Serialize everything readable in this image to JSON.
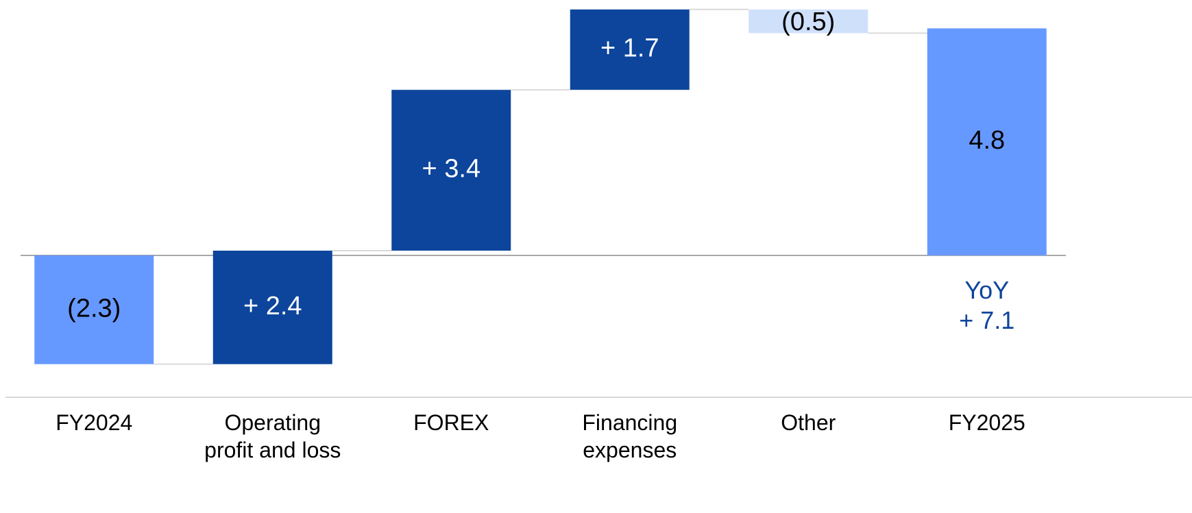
{
  "chart_data": {
    "type": "waterfall",
    "categories": [
      "FY2024",
      "Operating\nprofit and loss",
      "FOREX",
      "Financing\nexpenses",
      "Other",
      "FY2025"
    ],
    "values": [
      -2.3,
      2.4,
      3.4,
      1.7,
      -0.5,
      4.8
    ],
    "value_labels": [
      "(2.3)",
      "+ 2.4",
      "+ 3.4",
      "+ 1.7",
      "(0.5)",
      "4.8"
    ],
    "measure": [
      "absolute",
      "relative",
      "relative",
      "relative",
      "relative",
      "absolute"
    ],
    "colors": [
      "#6699ff",
      "#0d459c",
      "#0d459c",
      "#0d459c",
      "#cfe0fb",
      "#6699ff"
    ],
    "label_colors": [
      "#000000",
      "#ffffff",
      "#ffffff",
      "#ffffff",
      "#000000",
      "#000000"
    ],
    "annotation": "YoY\n+ 7.1",
    "annotation_color": "#0d459c",
    "ylim": [
      -3,
      5.4
    ]
  }
}
